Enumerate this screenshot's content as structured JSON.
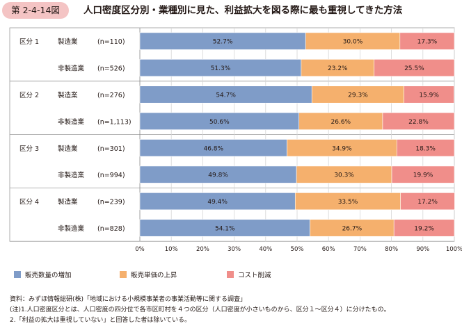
{
  "figure": {
    "number": "第 2-4-14図",
    "title": "人口密度区分別・業種別に見た、利益拡大を図る際に最も重視してきた方法"
  },
  "chart_data": {
    "type": "bar",
    "orientation": "horizontal",
    "stacked": true,
    "groups": [
      "区分 1",
      "区分 2",
      "区分 3",
      "区分 4"
    ],
    "categories": [
      {
        "group": "区分 1",
        "industry": "製造業",
        "n": "(n=110)"
      },
      {
        "group": "",
        "industry": "非製造業",
        "n": "(n=526)"
      },
      {
        "group": "区分 2",
        "industry": "製造業",
        "n": "(n=276)"
      },
      {
        "group": "",
        "industry": "非製造業",
        "n": "(n=1,113)"
      },
      {
        "group": "区分 3",
        "industry": "製造業",
        "n": "(n=301)"
      },
      {
        "group": "",
        "industry": "非製造業",
        "n": "(n=994)"
      },
      {
        "group": "区分 4",
        "industry": "製造業",
        "n": "(n=239)"
      },
      {
        "group": "",
        "industry": "非製造業",
        "n": "(n=828)"
      }
    ],
    "series": [
      {
        "name": "販売数量の増加",
        "color": "#7f9cc8",
        "values": [
          52.7,
          51.3,
          54.7,
          50.6,
          46.8,
          49.8,
          49.4,
          54.1
        ]
      },
      {
        "name": "販売単価の上昇",
        "color": "#f5b06d",
        "values": [
          30.0,
          23.2,
          29.3,
          26.6,
          34.9,
          30.3,
          33.5,
          26.7
        ]
      },
      {
        "name": "コスト削減",
        "color": "#f08e8a",
        "values": [
          17.3,
          25.5,
          15.9,
          22.8,
          18.3,
          19.9,
          17.2,
          19.2
        ]
      }
    ],
    "xlim": [
      0,
      100
    ],
    "x_ticks": [
      "0%",
      "10%",
      "20%",
      "30%",
      "40%",
      "50%",
      "60%",
      "70%",
      "80%",
      "90%",
      "100%"
    ],
    "grid": true,
    "legend_position": "bottom-left"
  },
  "notes": [
    "資料：みずほ情報総研(株)「地域における小規模事業者の事業活動等に関する調査」",
    "(注)1.人口密度区分とは、人口密度の四分位で各市区町村を４つの区分（人口密度が小さいものから、区分１〜区分４）に分けたもの。",
    "2.「利益の拡大は重視していない」と回答した者は除いている。"
  ]
}
